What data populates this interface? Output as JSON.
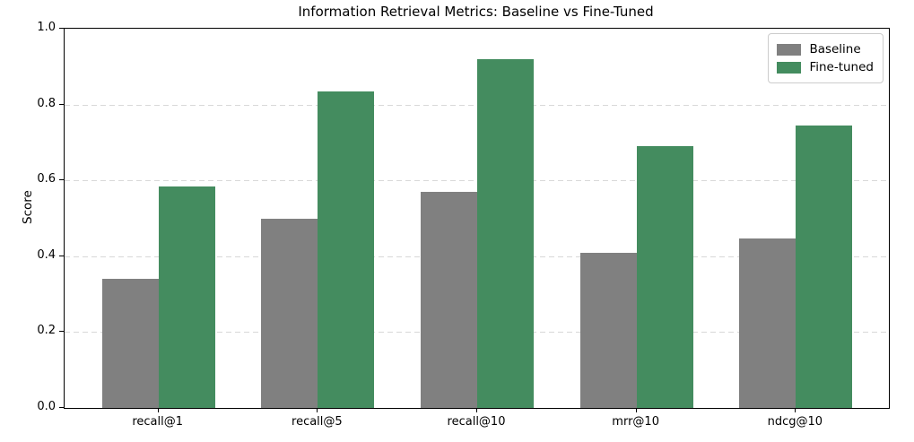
{
  "title": "Information Retrieval Metrics: Baseline vs Fine-Tuned",
  "chart_data": {
    "type": "bar",
    "title": "Information Retrieval Metrics: Baseline vs Fine-Tuned",
    "xlabel": "",
    "ylabel": "Score",
    "categories": [
      "recall@1",
      "recall@5",
      "recall@10",
      "mrr@10",
      "ndcg@10"
    ],
    "series": [
      {
        "name": "Baseline",
        "color": "#808080",
        "values": [
          0.34,
          0.5,
          0.57,
          0.41,
          0.447
        ]
      },
      {
        "name": "Fine-tuned",
        "color": "#448C5F",
        "values": [
          0.585,
          0.835,
          0.92,
          0.69,
          0.745
        ]
      }
    ],
    "ylim": [
      0.0,
      1.0
    ],
    "yticks": [
      0.0,
      0.2,
      0.4,
      0.6,
      0.8,
      1.0
    ],
    "ytick_labels": [
      "0.0",
      "0.2",
      "0.4",
      "0.6",
      "0.8",
      "1.0"
    ],
    "grid": "horizontal dashed gridlines at y ticks",
    "gridline_color": "#d8d8d8",
    "legend_position": "upper right",
    "bar_width_fraction": 0.35,
    "axis_color": "#000000",
    "background_color": "#ffffff"
  }
}
